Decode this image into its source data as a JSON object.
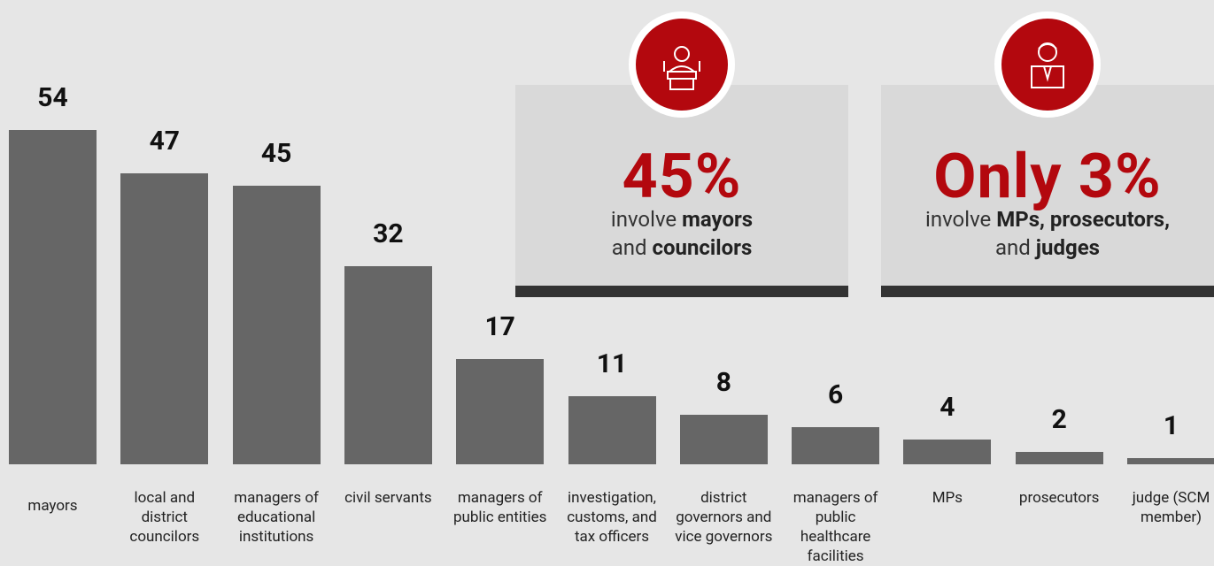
{
  "chart_data": {
    "type": "bar",
    "categories": [
      "mayors",
      "local and district councilors",
      "managers of educational institutions",
      "civil servants",
      "managers of public entities",
      "investigation, customs, and tax officers",
      "district governors and vice governors",
      "managers of public healthcare facilities",
      "MPs",
      "prosecutors",
      "judge (SCM member)"
    ],
    "values": [
      54,
      47,
      45,
      32,
      17,
      11,
      8,
      6,
      4,
      2,
      1
    ],
    "color": "#666666"
  },
  "callouts": [
    {
      "headline": "45%",
      "parts": [
        "involve ",
        "mayors",
        " and ",
        "councilors"
      ]
    },
    {
      "headline": "Only 3%",
      "parts": [
        "involve ",
        "MPs, prosecutors,",
        " and ",
        "judges"
      ]
    }
  ]
}
